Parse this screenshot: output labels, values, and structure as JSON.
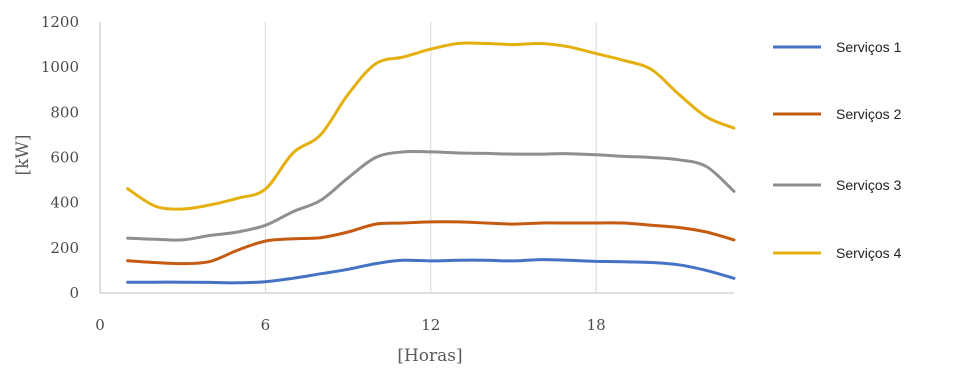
{
  "chart_data": {
    "type": "line",
    "title": "",
    "xlabel": "[Horas]",
    "ylabel": "[kW]",
    "xlim": [
      0,
      23
    ],
    "ylim": [
      0,
      1200
    ],
    "xticks": [
      0,
      6,
      12,
      18
    ],
    "yticks": [
      0,
      200,
      400,
      600,
      800,
      1000,
      1200
    ],
    "grid": "vertical",
    "legend_position": "right",
    "x": [
      1,
      2,
      3,
      4,
      5,
      6,
      7,
      8,
      9,
      10,
      11,
      12,
      13,
      14,
      15,
      16,
      17,
      18,
      19,
      20,
      21,
      22,
      23
    ],
    "series": [
      {
        "name": "Serviços 1",
        "color": "#4472c4",
        "values": [
          48,
          48,
          48,
          47,
          45,
          50,
          65,
          85,
          105,
          130,
          145,
          142,
          145,
          145,
          142,
          148,
          145,
          140,
          138,
          135,
          125,
          100,
          65
        ]
      },
      {
        "name": "Serviços 2",
        "color": "#c55a11",
        "values": [
          143,
          135,
          130,
          140,
          190,
          230,
          240,
          245,
          270,
          305,
          310,
          315,
          315,
          310,
          305,
          310,
          310,
          310,
          310,
          300,
          290,
          270,
          235
        ]
      },
      {
        "name": "Serviços 3",
        "color": "#8f8f8f",
        "values": [
          243,
          238,
          235,
          255,
          270,
          300,
          360,
          410,
          510,
          600,
          625,
          625,
          620,
          618,
          615,
          615,
          617,
          612,
          605,
          600,
          590,
          560,
          450
        ]
      },
      {
        "name": "Serviços 4",
        "color": "#e5b00e",
        "values": [
          462,
          385,
          372,
          390,
          420,
          460,
          620,
          700,
          880,
          1015,
          1045,
          1080,
          1105,
          1105,
          1100,
          1105,
          1090,
          1060,
          1030,
          990,
          880,
          780,
          730
        ]
      }
    ]
  }
}
